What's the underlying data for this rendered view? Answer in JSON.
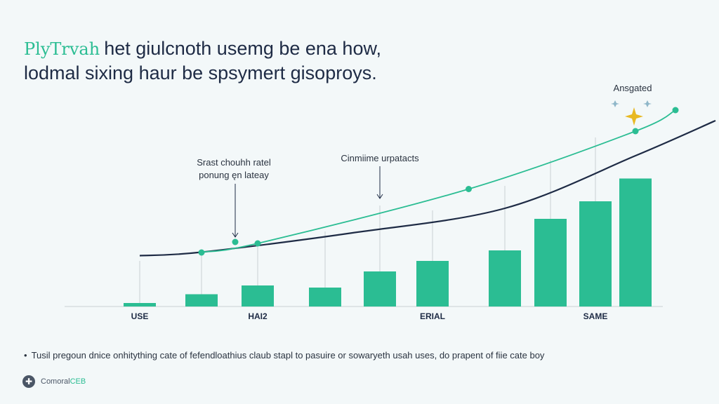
{
  "header": {
    "brand": "PlyTrvah",
    "title_line1": "het giulcnoth usemg be ena how,",
    "title_line2": "lodmal sixing haur be spsymert gisoproys."
  },
  "chart_data": {
    "type": "bar",
    "categories": [
      "USE",
      "",
      "HAI2",
      "",
      "",
      "ERIAL",
      "",
      "",
      "SAME",
      ""
    ],
    "values": [
      1.0,
      3.5,
      6.0,
      5.4,
      10.0,
      13.0,
      16.0,
      25.0,
      30.0,
      36.5
    ],
    "ylim": [
      0,
      60
    ],
    "series": [
      {
        "name": "curve",
        "type": "line",
        "color": "#1e2b45",
        "points": [
          [
            0,
            14.5
          ],
          [
            1,
            15.5
          ],
          [
            3.5,
            21
          ],
          [
            6,
            28
          ],
          [
            9,
            43
          ],
          [
            11,
            53
          ]
        ]
      },
      {
        "name": "trend",
        "type": "line",
        "color": "#2bbd93",
        "points": [
          [
            1,
            15.5
          ],
          [
            2,
            18
          ],
          [
            5.5,
            33.5
          ],
          [
            9,
            50
          ],
          [
            10,
            56
          ]
        ]
      }
    ],
    "markers": [
      [
        2,
        18
      ],
      [
        5.5,
        33.5
      ],
      [
        9,
        50
      ],
      [
        10,
        56
      ]
    ],
    "annotations": [
      {
        "lines": [
          "Srast chouhh ratel",
          "ponung ęn lateay"
        ]
      },
      {
        "lines": [
          "Cinmiime urpatacts"
        ]
      },
      {
        "lines": [
          "Ansgated"
        ]
      }
    ]
  },
  "footnote": "Tusil pregoun dnice onhitything cate of fefendloathius claub stapl to pasuire or sowaryeth usah uses, do prapent of fiie cate boy",
  "footer": {
    "logo_glyph": "✚",
    "name_prefix": "Comoral",
    "name_accent": "CEB"
  },
  "colors": {
    "bar": "#2bbd93",
    "curve": "#1e2b45",
    "trend": "#2bbd93",
    "grid": "#c8cfd4",
    "star": "#e8b923"
  }
}
